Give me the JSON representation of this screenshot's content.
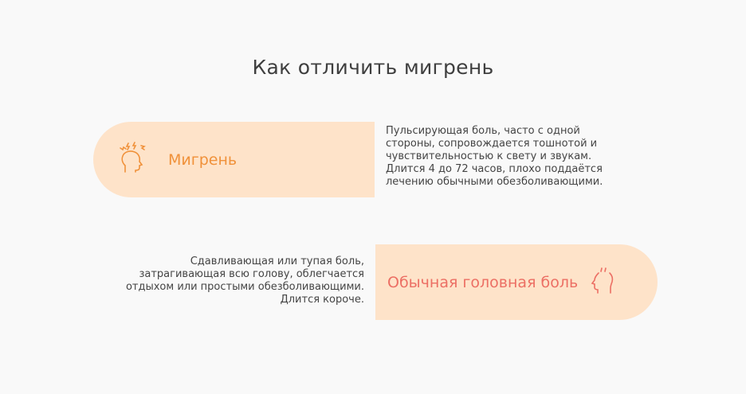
{
  "title": "Как отличить мигрень",
  "migraine": {
    "label": "Мигрень",
    "icon": "head-pain-icon",
    "color": "#f0913a",
    "description": "Пульсирующая боль, часто с одной стороны, сопровождается тошнотой и чувствительностью к свету и звукам. Длится 4 до 72 часов, плохо поддаётся лечению обычными обезболивающими."
  },
  "headache": {
    "label": "Обычная головная боль",
    "icon": "head-steam-icon",
    "color": "#ec6f64",
    "description": "Сдавливающая или тупая боль, затрагивающая всю голову, облегчается отдыхом или простыми обезболивающими. Длится короче."
  },
  "pill_color": "#fee3c9"
}
